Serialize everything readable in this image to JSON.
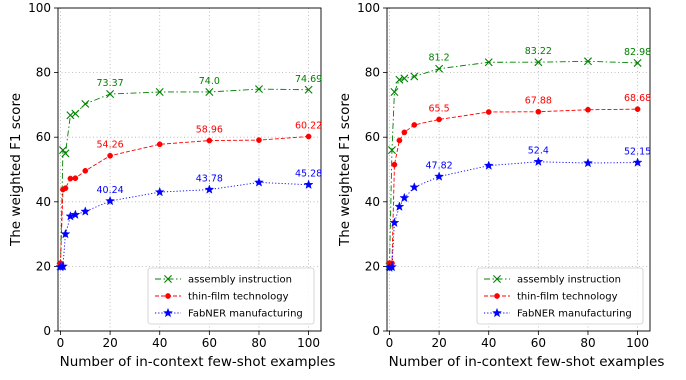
{
  "chart_data": [
    {
      "type": "line",
      "xlabel": "Number of in-context few-shot examples",
      "ylabel": "The weighted F1 score",
      "xlim": [
        -1,
        105
      ],
      "ylim": [
        0,
        100
      ],
      "xticks": [
        0,
        20,
        40,
        60,
        80,
        100
      ],
      "yticks": [
        0,
        20,
        40,
        60,
        80,
        100
      ],
      "grid": true,
      "legend_position": "lower-right",
      "series": [
        {
          "name": "assembly instruction",
          "color": "#008000",
          "marker": "x",
          "linestyle": "dash-dot",
          "x": [
            0,
            1,
            2,
            4,
            6,
            10,
            20,
            40,
            60,
            80,
            100
          ],
          "y": [
            20,
            56,
            55,
            66.8,
            67.3,
            70.3,
            73.37,
            74.0,
            74.0,
            74.9,
            74.69
          ],
          "labels": [
            {
              "x": 20,
              "text": "73.37"
            },
            {
              "x": 60,
              "text": "74.0"
            },
            {
              "x": 100,
              "text": "74.69"
            }
          ]
        },
        {
          "name": "thin-film technology",
          "color": "#ff0000",
          "marker": "circle",
          "linestyle": "dashed",
          "x": [
            0,
            1,
            2,
            4,
            6,
            10,
            20,
            40,
            60,
            80,
            100
          ],
          "y": [
            21,
            43.8,
            44.2,
            47.2,
            47.3,
            49.6,
            54.26,
            57.8,
            58.96,
            59.1,
            60.22
          ],
          "labels": [
            {
              "x": 20,
              "text": "54.26"
            },
            {
              "x": 60,
              "text": "58.96"
            },
            {
              "x": 100,
              "text": "60.22"
            }
          ]
        },
        {
          "name": "FabNER manufacturing",
          "color": "#0000ff",
          "marker": "star",
          "linestyle": "dotted",
          "x": [
            0,
            1,
            2,
            4,
            6,
            10,
            20,
            40,
            60,
            80,
            100
          ],
          "y": [
            19.8,
            20,
            30,
            35.5,
            36,
            37,
            40.24,
            43,
            43.78,
            46,
            45.28
          ],
          "labels": [
            {
              "x": 20,
              "text": "40.24"
            },
            {
              "x": 60,
              "text": "43.78"
            },
            {
              "x": 100,
              "text": "45.28"
            }
          ]
        }
      ]
    },
    {
      "type": "line",
      "xlabel": "Number of in-context few-shot examples",
      "ylabel": "The weighted F1 score",
      "xlim": [
        -1,
        105
      ],
      "ylim": [
        0,
        100
      ],
      "xticks": [
        0,
        20,
        40,
        60,
        80,
        100
      ],
      "yticks": [
        0,
        20,
        40,
        60,
        80,
        100
      ],
      "grid": true,
      "legend_position": "lower-right",
      "series": [
        {
          "name": "assembly instruction",
          "color": "#008000",
          "marker": "x",
          "linestyle": "dash-dot",
          "x": [
            0,
            1,
            2,
            4,
            6,
            10,
            20,
            40,
            60,
            80,
            100
          ],
          "y": [
            20,
            56,
            74,
            77.8,
            78.2,
            78.8,
            81.2,
            83.2,
            83.22,
            83.5,
            82.98
          ],
          "labels": [
            {
              "x": 20,
              "text": "81.2"
            },
            {
              "x": 60,
              "text": "83.22"
            },
            {
              "x": 100,
              "text": "82.98"
            }
          ]
        },
        {
          "name": "thin-film technology",
          "color": "#ff0000",
          "marker": "circle",
          "linestyle": "dashed",
          "x": [
            0,
            1,
            2,
            4,
            6,
            10,
            20,
            40,
            60,
            80,
            100
          ],
          "y": [
            21,
            21,
            51.5,
            59,
            61.5,
            63.8,
            65.5,
            67.8,
            67.88,
            68.5,
            68.68
          ],
          "labels": [
            {
              "x": 20,
              "text": "65.5"
            },
            {
              "x": 60,
              "text": "67.88"
            },
            {
              "x": 100,
              "text": "68.68"
            }
          ]
        },
        {
          "name": "FabNER manufacturing",
          "color": "#0000ff",
          "marker": "star",
          "linestyle": "dotted",
          "x": [
            0,
            1,
            2,
            4,
            6,
            10,
            20,
            40,
            60,
            80,
            100
          ],
          "y": [
            19.6,
            19.8,
            33.5,
            38.5,
            41.2,
            44.5,
            47.82,
            51.2,
            52.4,
            52,
            52.15
          ],
          "labels": [
            {
              "x": 20,
              "text": "47.82"
            },
            {
              "x": 60,
              "text": "52.4"
            },
            {
              "x": 100,
              "text": "52.15"
            }
          ]
        }
      ]
    }
  ]
}
